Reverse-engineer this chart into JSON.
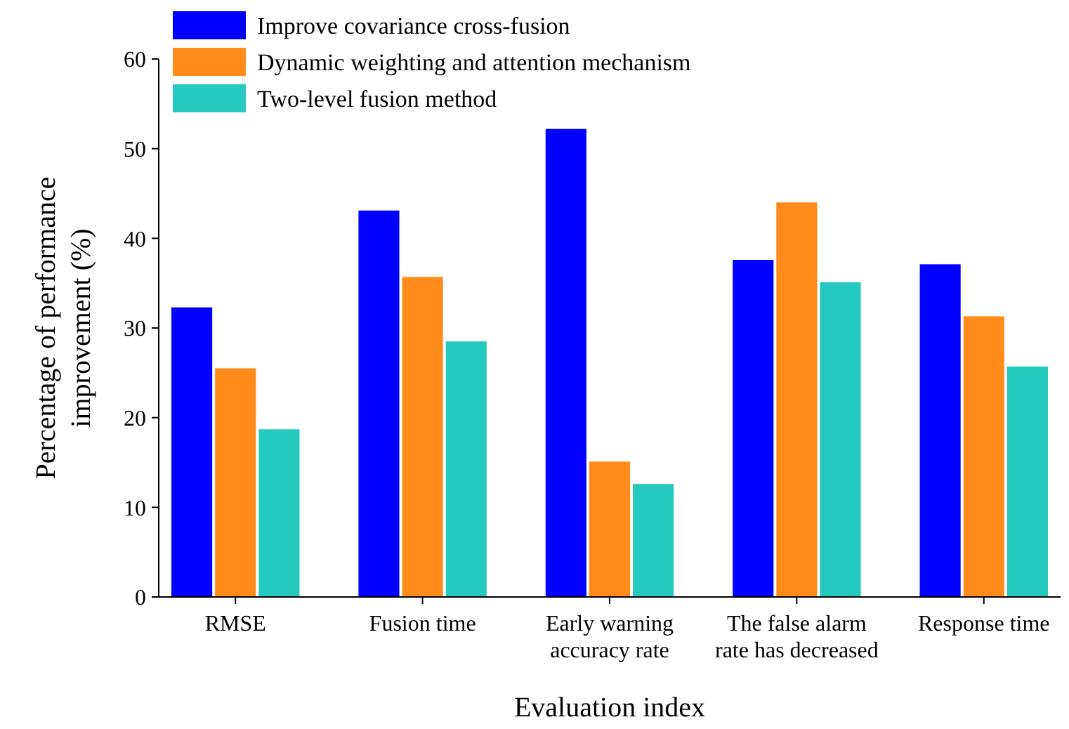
{
  "chart_data": {
    "type": "bar",
    "xlabel": "Evaluation index",
    "ylabel": "Percentage of performance\nimprovement (%)",
    "categories": [
      "RMSE",
      "Fusion time",
      "Early warning\naccuracy rate",
      "The false alarm\nrate has decreased",
      "Response time"
    ],
    "series": [
      {
        "name": "Improve covariance cross-fusion",
        "color": "#0000ff",
        "values": [
          32.3,
          43.1,
          52.2,
          37.6,
          37.1
        ]
      },
      {
        "name": "Dynamic weighting and attention mechanism",
        "color": "#ff8c1a",
        "values": [
          25.5,
          35.7,
          15.1,
          44.0,
          31.3
        ]
      },
      {
        "name": "Two-level fusion method",
        "color": "#26c9bf",
        "values": [
          18.7,
          28.5,
          12.6,
          35.1,
          25.7
        ]
      }
    ],
    "ylim": [
      0,
      60
    ],
    "yticks": [
      0,
      10,
      20,
      30,
      40,
      50,
      60
    ],
    "grid": false,
    "legend": "top left"
  }
}
